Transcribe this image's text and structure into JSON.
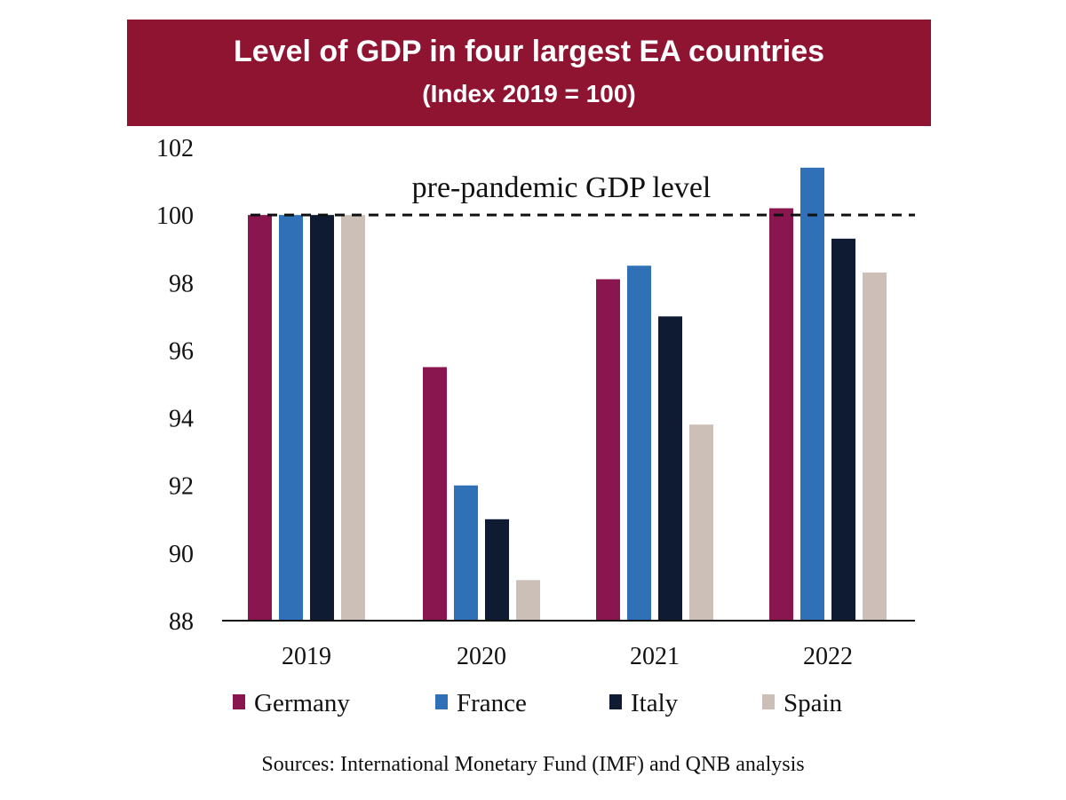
{
  "header": {
    "title": "Level of GDP in four largest EA countries",
    "subtitle": "(Index 2019 = 100)"
  },
  "colors": {
    "banner": "#8f1431",
    "Germany": "#8a1650",
    "France": "#2f70b6",
    "Italy": "#0f1a33",
    "Spain": "#cbbfb8"
  },
  "chart_data": {
    "type": "bar",
    "categories": [
      "2019",
      "2020",
      "2021",
      "2022"
    ],
    "series": [
      {
        "name": "Germany",
        "values": [
          100.0,
          95.5,
          98.1,
          100.2
        ]
      },
      {
        "name": "France",
        "values": [
          100.0,
          92.0,
          98.5,
          101.4
        ]
      },
      {
        "name": "Italy",
        "values": [
          100.0,
          91.0,
          97.0,
          99.3
        ]
      },
      {
        "name": "Spain",
        "values": [
          100.0,
          89.2,
          93.8,
          98.3
        ]
      }
    ],
    "ylim": [
      88,
      102
    ],
    "yticks": [
      88,
      90,
      92,
      94,
      96,
      98,
      100,
      102
    ],
    "reference_line": {
      "value": 100,
      "label": "pre-pandemic GDP level",
      "style": "dashed"
    },
    "legend_position": "bottom",
    "grid": false
  },
  "footer": {
    "source": "Sources: International Monetary Fund (IMF) and QNB analysis"
  }
}
